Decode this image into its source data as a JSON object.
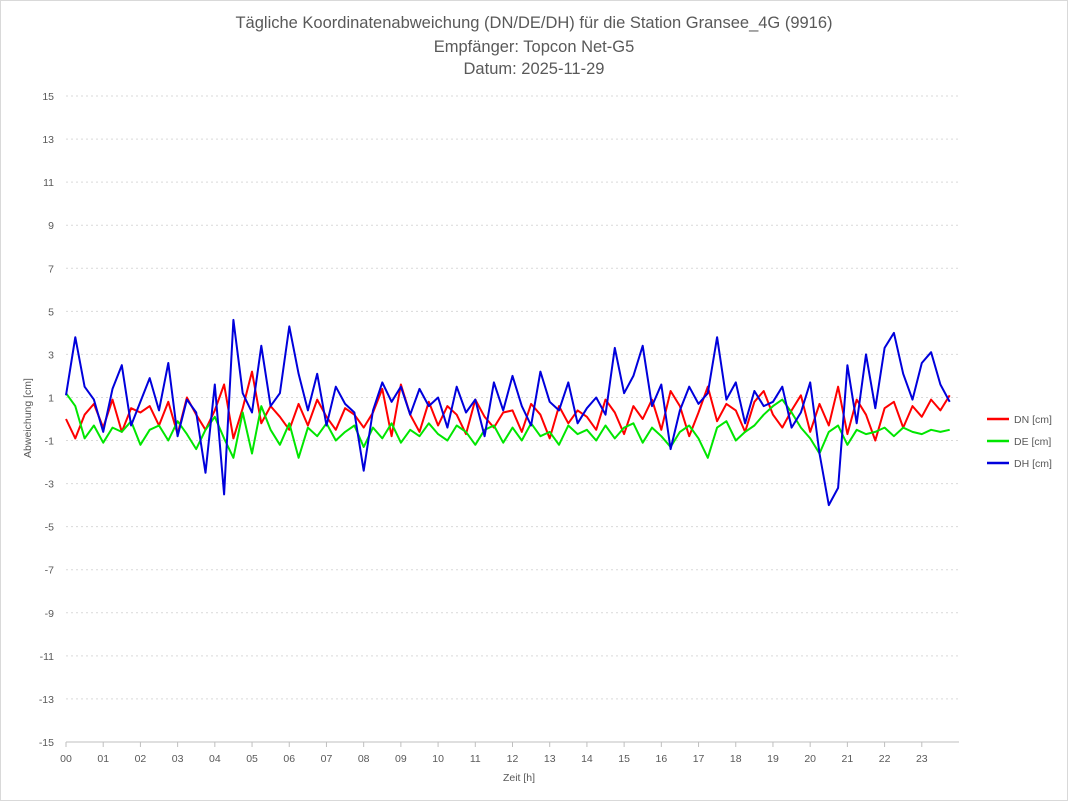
{
  "chart_data": {
    "type": "line",
    "title": "Tägliche Koordinatenabweichung (DN/DE/DH) für die Station Gransee_4G (9916)",
    "subtitle": "Empfänger: Topcon Net-G5",
    "date_line": "Datum: 2025-11-29",
    "xlabel": "Zeit [h]",
    "ylabel": "Abweichung [cm]",
    "xlim": [
      0,
      24
    ],
    "ylim": [
      -15,
      15
    ],
    "x_ticks": [
      "00",
      "01",
      "02",
      "03",
      "04",
      "05",
      "06",
      "07",
      "08",
      "09",
      "10",
      "11",
      "12",
      "13",
      "14",
      "15",
      "16",
      "17",
      "18",
      "19",
      "20",
      "21",
      "22",
      "23"
    ],
    "y_ticks": [
      "15",
      "13",
      "11",
      "9",
      "7",
      "5",
      "3",
      "1",
      "-1",
      "-3",
      "-5",
      "-7",
      "-9",
      "-11",
      "-13",
      "-15"
    ],
    "grid": true,
    "legend_position": "right",
    "sample_interval_h": 0.25,
    "series": [
      {
        "name": "DN [cm]",
        "color": "#ff0000",
        "values": [
          0.0,
          -0.9,
          0.2,
          0.7,
          -0.4,
          0.9,
          -0.6,
          0.5,
          0.3,
          0.6,
          -0.3,
          0.8,
          -0.7,
          1.0,
          0.2,
          -0.5,
          0.4,
          1.6,
          -0.9,
          0.5,
          2.2,
          -0.2,
          0.6,
          0.1,
          -0.5,
          0.7,
          -0.3,
          0.9,
          0.1,
          -0.5,
          0.5,
          0.2,
          -0.4,
          0.3,
          1.4,
          -0.8,
          1.6,
          0.2,
          -0.6,
          0.8,
          -0.3,
          0.6,
          0.2,
          -0.7,
          0.9,
          0.1,
          -0.4,
          0.3,
          0.4,
          -0.6,
          0.7,
          0.2,
          -0.9,
          0.6,
          -0.2,
          0.4,
          0.1,
          -0.5,
          0.9,
          0.3,
          -0.7,
          0.6,
          0.0,
          0.9,
          -0.5,
          1.3,
          0.6,
          -0.8,
          0.3,
          1.5,
          -0.1,
          0.7,
          0.4,
          -0.6,
          0.8,
          1.3,
          0.2,
          -0.4,
          0.4,
          1.1,
          -0.6,
          0.7,
          -0.3,
          1.5,
          -0.7,
          0.9,
          0.2,
          -1.0,
          0.5,
          0.8,
          -0.4,
          0.6,
          0.1,
          0.9,
          0.4,
          1.1
        ]
      },
      {
        "name": "DE [cm]",
        "color": "#00e600",
        "values": [
          1.2,
          0.6,
          -0.9,
          -0.3,
          -1.1,
          -0.4,
          -0.6,
          -0.1,
          -1.2,
          -0.5,
          -0.3,
          -1.0,
          -0.1,
          -0.7,
          -1.4,
          -0.5,
          0.1,
          -0.9,
          -1.8,
          0.3,
          -1.6,
          0.6,
          -0.5,
          -1.2,
          -0.2,
          -1.8,
          -0.4,
          -0.8,
          -0.2,
          -1.0,
          -0.6,
          -0.3,
          -1.3,
          -0.4,
          -0.9,
          -0.2,
          -1.1,
          -0.5,
          -0.8,
          -0.2,
          -0.7,
          -1.0,
          -0.3,
          -0.6,
          -1.2,
          -0.5,
          -0.3,
          -1.1,
          -0.4,
          -1.0,
          -0.2,
          -0.8,
          -0.6,
          -1.2,
          -0.3,
          -0.7,
          -0.5,
          -1.0,
          -0.3,
          -0.9,
          -0.4,
          -0.2,
          -1.1,
          -0.4,
          -0.8,
          -1.3,
          -0.6,
          -0.3,
          -0.9,
          -1.8,
          -0.4,
          -0.1,
          -1.0,
          -0.6,
          -0.3,
          0.2,
          0.6,
          0.9,
          0.3,
          -0.4,
          -0.9,
          -1.6,
          -0.6,
          -0.3,
          -1.2,
          -0.5,
          -0.7,
          -0.6,
          -0.4,
          -0.8,
          -0.4,
          -0.6,
          -0.7,
          -0.5,
          -0.6,
          -0.5
        ]
      },
      {
        "name": "DH [cm]",
        "color": "#0000dc",
        "values": [
          1.1,
          3.8,
          1.5,
          0.9,
          -0.6,
          1.4,
          2.5,
          -0.3,
          0.8,
          1.9,
          0.4,
          2.6,
          -0.8,
          0.9,
          0.3,
          -2.5,
          1.6,
          -3.5,
          4.6,
          1.2,
          0.3,
          3.4,
          0.6,
          1.2,
          4.3,
          2.1,
          0.4,
          2.1,
          -0.3,
          1.5,
          0.7,
          0.3,
          -2.4,
          0.4,
          1.7,
          0.8,
          1.5,
          0.2,
          1.4,
          0.6,
          1.0,
          -0.4,
          1.5,
          0.3,
          0.9,
          -0.8,
          1.7,
          0.4,
          2.0,
          0.6,
          -0.3,
          2.2,
          0.8,
          0.4,
          1.7,
          -0.2,
          0.5,
          1.0,
          0.2,
          3.3,
          1.2,
          2.0,
          3.4,
          0.6,
          1.6,
          -1.4,
          0.4,
          1.5,
          0.7,
          1.2,
          3.8,
          0.9,
          1.7,
          -0.2,
          1.3,
          0.6,
          0.8,
          1.5,
          -0.4,
          0.3,
          1.7,
          -1.6,
          -4.0,
          -3.2,
          2.5,
          -0.2,
          3.0,
          0.5,
          3.3,
          4.0,
          2.1,
          0.9,
          2.6,
          3.1,
          1.6,
          0.8
        ]
      }
    ]
  }
}
